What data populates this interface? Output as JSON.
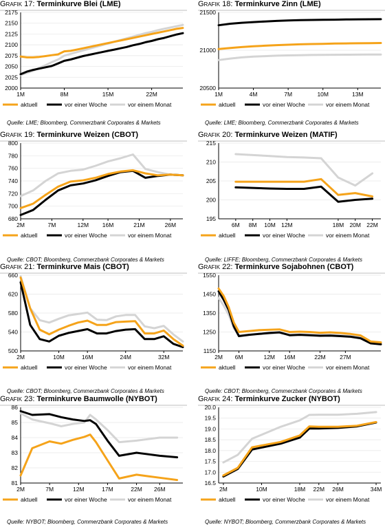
{
  "chart_data": [
    {
      "type": "line",
      "label_prefix": "Grafik",
      "number": "17:",
      "title": "Terminkurve Blei (LME)",
      "source": "Quelle: LME; Bloomberg, Commerzbank Corporates & Markets",
      "ylim": [
        2000,
        2175
      ],
      "yticks": [
        "2000",
        "2025",
        "2050",
        "2075",
        "2100",
        "2125",
        "2150",
        "2175"
      ],
      "x": [
        1,
        2,
        3,
        4,
        5,
        6,
        7,
        8,
        9,
        10,
        11,
        12,
        13,
        14,
        15,
        16,
        17,
        18,
        19,
        20,
        21,
        22,
        23,
        24,
        25,
        26,
        27
      ],
      "xlim": [
        1,
        27
      ],
      "xticks": [
        {
          "v": 1,
          "label": "1M"
        },
        {
          "v": 8,
          "label": "8M"
        },
        {
          "v": 15,
          "label": "15M"
        },
        {
          "v": 22,
          "label": "22M"
        }
      ],
      "series": [
        {
          "name": "aktuell",
          "values": [
            2073,
            2071,
            2071,
            2072,
            2074,
            2076,
            2078,
            2085,
            2086,
            2089,
            2092,
            2095,
            2098,
            2101,
            2104,
            2107,
            2110,
            2113,
            2116,
            2119,
            2122,
            2125,
            2128,
            2131,
            2134,
            2137,
            2139
          ]
        },
        {
          "name": "vor einer Woche",
          "values": [
            2032,
            2038,
            2042,
            2045,
            2048,
            2051,
            2057,
            2063,
            2066,
            2070,
            2074,
            2077,
            2080,
            2083,
            2086,
            2089,
            2092,
            2095,
            2099,
            2102,
            2106,
            2109,
            2113,
            2116,
            2120,
            2124,
            2127
          ]
        },
        {
          "name": "vor einem Monat",
          "values": [
            2030,
            2035,
            2040,
            2047,
            2053,
            2060,
            2066,
            2075,
            2079,
            2083,
            2087,
            2091,
            2095,
            2099,
            2103,
            2107,
            2111,
            2115,
            2119,
            2123,
            2127,
            2130,
            2134,
            2137,
            2140,
            2143,
            2146
          ]
        }
      ]
    },
    {
      "type": "line",
      "label_prefix": "Grafik",
      "number": "18:",
      "title": "Terminkurve Zinn (LME)",
      "source": "Quelle: LME; Bloomberg, Commerzbank Corporates & Markets",
      "ylim": [
        20500,
        21500
      ],
      "yticks": [
        "20500",
        "21000",
        "21500"
      ],
      "x": [
        1,
        2,
        3,
        4,
        5,
        6,
        7,
        8,
        9,
        10,
        11,
        12,
        13,
        14,
        15
      ],
      "xlim": [
        1,
        15
      ],
      "xticks": [
        {
          "v": 1,
          "label": "1M"
        },
        {
          "v": 4,
          "label": "4M"
        },
        {
          "v": 7,
          "label": "7M"
        },
        {
          "v": 10,
          "label": "10M"
        },
        {
          "v": 13,
          "label": "13M"
        }
      ],
      "series": [
        {
          "name": "aktuell",
          "values": [
            21015,
            21030,
            21042,
            21052,
            21060,
            21067,
            21073,
            21078,
            21082,
            21085,
            21088,
            21090,
            21092,
            21094,
            21095
          ]
        },
        {
          "name": "vor einer Woche",
          "values": [
            21330,
            21350,
            21363,
            21372,
            21380,
            21387,
            21393,
            21397,
            21400,
            21402,
            21404,
            21406,
            21408,
            21409,
            21410
          ]
        },
        {
          "name": "vor einem Monat",
          "values": [
            20870,
            20890,
            20905,
            20915,
            20922,
            20928,
            20932,
            20935,
            20937,
            20939,
            20940,
            20941,
            20942,
            20943,
            20943
          ]
        }
      ]
    },
    {
      "type": "line",
      "label_prefix": "Grafik",
      "number": "19:",
      "title": "Terminkurve Weizen (CBOT)",
      "source": "Quelle: CBOT; Bloomberg, Commerzbank Corporates & Markets",
      "ylim": [
        680,
        800
      ],
      "yticks": [
        "680",
        "700",
        "720",
        "740",
        "760",
        "780",
        "800"
      ],
      "x": [
        2,
        4,
        6,
        8,
        10,
        12,
        14,
        16,
        18,
        20,
        22,
        24,
        26,
        28
      ],
      "xlim": [
        2,
        28
      ],
      "xticks": [
        {
          "v": 2,
          "label": "2M"
        },
        {
          "v": 7,
          "label": "7M"
        },
        {
          "v": 12,
          "label": "12M"
        },
        {
          "v": 16,
          "label": "16M"
        },
        {
          "v": 21,
          "label": "21M"
        },
        {
          "v": 26,
          "label": "26M"
        }
      ],
      "series": [
        {
          "name": "aktuell",
          "values": [
            697,
            704,
            718,
            731,
            739,
            741,
            745,
            751,
            755,
            757,
            752,
            749,
            750,
            749
          ]
        },
        {
          "name": "vor einer Woche",
          "values": [
            686,
            694,
            710,
            725,
            733,
            736,
            741,
            748,
            754,
            756,
            745,
            748,
            750,
            749
          ]
        },
        {
          "name": "vor einem Monat",
          "values": [
            716,
            725,
            740,
            752,
            756,
            758,
            764,
            771,
            776,
            782,
            759,
            754,
            750,
            749
          ]
        }
      ]
    },
    {
      "type": "line",
      "label_prefix": "Grafik",
      "number": "20:",
      "title": "Terminkurve Weizen (MATIF)",
      "source": "Quelle: LIFFE; Bloomberg, Commerzbank Corporates & Markets",
      "ylim": [
        195,
        215
      ],
      "yticks": [
        "195",
        "200",
        "205",
        "210",
        "215"
      ],
      "x": [
        6,
        10,
        14,
        18,
        20,
        22
      ],
      "xlim": [
        4,
        23
      ],
      "xticks": [
        {
          "v": 6,
          "label": "6M"
        },
        {
          "v": 8,
          "label": "8M"
        },
        {
          "v": 10,
          "label": "10M"
        },
        {
          "v": 12,
          "label": "12M"
        },
        {
          "v": 18,
          "label": "18M"
        },
        {
          "v": 20,
          "label": "20M"
        },
        {
          "v": 22,
          "label": "22M"
        }
      ],
      "series": [
        {
          "name": "aktuell",
          "x": [
            6,
            10,
            12,
            14,
            16,
            18,
            20,
            22
          ],
          "values": [
            204.8,
            204.8,
            204.8,
            204.8,
            205.5,
            201.3,
            201.8,
            200.9
          ]
        },
        {
          "name": "vor einer Woche",
          "x": [
            6,
            10,
            12,
            14,
            16,
            18,
            20,
            22
          ],
          "values": [
            203.3,
            203.0,
            202.9,
            202.9,
            203.5,
            199.5,
            200.0,
            200.3
          ]
        },
        {
          "name": "vor einem Monat",
          "x": [
            6,
            10,
            12,
            14,
            16,
            18,
            20,
            22
          ],
          "values": [
            212.1,
            211.6,
            211.3,
            211.2,
            211.0,
            205.9,
            203.8,
            207.0
          ]
        }
      ]
    },
    {
      "type": "line",
      "label_prefix": "Grafik",
      "number": "21:",
      "title": "Terminkurve Mais (CBOT)",
      "source": "Quelle: CBOT; Bloomberg, Commerzbank Corporates & Markets",
      "ylim": [
        500,
        660
      ],
      "yticks": [
        "500",
        "540",
        "580",
        "620",
        "660"
      ],
      "x": [
        2,
        4,
        6,
        8,
        10,
        12,
        14,
        16,
        18,
        20,
        22,
        24,
        26,
        28,
        30,
        32,
        34,
        36
      ],
      "xlim": [
        2,
        36
      ],
      "xticks": [
        {
          "v": 2,
          "label": "2M"
        },
        {
          "v": 10,
          "label": "10M"
        },
        {
          "v": 16,
          "label": "16M"
        },
        {
          "v": 24,
          "label": "24M"
        },
        {
          "v": 32,
          "label": "32M"
        }
      ],
      "series": [
        {
          "name": "aktuell",
          "values": [
            655,
            590,
            545,
            535,
            545,
            553,
            560,
            564,
            555,
            555,
            561,
            562,
            563,
            537,
            537,
            543,
            525,
            511
          ]
        },
        {
          "name": "vor einer Woche",
          "values": [
            645,
            555,
            525,
            520,
            532,
            538,
            542,
            546,
            537,
            537,
            542,
            545,
            546,
            525,
            525,
            531,
            515,
            508
          ]
        },
        {
          "name": "vor einem Monat",
          "values": [
            658,
            590,
            565,
            560,
            568,
            575,
            578,
            581,
            566,
            565,
            573,
            576,
            576,
            552,
            548,
            553,
            535,
            520
          ]
        }
      ]
    },
    {
      "type": "line",
      "label_prefix": "Grafik",
      "number": "22:",
      "title": "Terminkurve Sojabohnen (CBOT)",
      "source": "Quelle: CBOT; Bloomberg, Commerzbank Corporates & Markets",
      "ylim": [
        1150,
        1550
      ],
      "yticks": [
        "1150",
        "1250",
        "1350",
        "1450",
        "1550"
      ],
      "x": [
        2,
        3,
        4,
        5,
        6,
        8,
        10,
        12,
        14,
        16,
        18,
        20,
        22,
        24,
        26,
        28,
        30,
        32,
        34
      ],
      "xlim": [
        2,
        34
      ],
      "xticks": [
        {
          "v": 2,
          "label": "2M"
        },
        {
          "v": 6,
          "label": "6M"
        },
        {
          "v": 12,
          "label": "12M"
        },
        {
          "v": 16,
          "label": "16M"
        },
        {
          "v": 22,
          "label": "22M"
        },
        {
          "v": 27,
          "label": "27M"
        }
      ],
      "series": [
        {
          "name": "aktuell",
          "values": [
            1480,
            1440,
            1380,
            1300,
            1250,
            1255,
            1260,
            1262,
            1264,
            1250,
            1252,
            1250,
            1246,
            1248,
            1245,
            1240,
            1232,
            1200,
            1195
          ]
        },
        {
          "name": "vor einer Woche",
          "values": [
            1465,
            1420,
            1365,
            1280,
            1228,
            1235,
            1240,
            1245,
            1248,
            1233,
            1235,
            1233,
            1230,
            1231,
            1228,
            1225,
            1217,
            1190,
            1185
          ]
        },
        {
          "name": "vor einem Monat",
          "values": [
            1430,
            1390,
            1340,
            1270,
            1232,
            1236,
            1240,
            1242,
            1245,
            1236,
            1238,
            1237,
            1235,
            1236,
            1233,
            1228,
            1222,
            1198,
            1193
          ]
        }
      ]
    },
    {
      "type": "line",
      "label_prefix": "Grafik",
      "number": "23:",
      "title": "Terminkurve Baumwolle (NYBOT)",
      "source": "Quelle: NYBOT; Bloomberg, Commerzbank Corporates & Markets",
      "ylim": [
        81,
        86
      ],
      "yticks": [
        "81",
        "82",
        "83",
        "84",
        "85",
        "86"
      ],
      "x": [
        2,
        4,
        7,
        9,
        11,
        13,
        14,
        15,
        17,
        19,
        22,
        24,
        26,
        29
      ],
      "xlim": [
        2,
        30
      ],
      "xticks": [
        {
          "v": 2,
          "label": "2M"
        },
        {
          "v": 7,
          "label": "7M"
        },
        {
          "v": 12,
          "label": "12M"
        },
        {
          "v": 17,
          "label": "17M"
        },
        {
          "v": 22,
          "label": "22M"
        },
        {
          "v": 26,
          "label": "26M"
        }
      ],
      "series": [
        {
          "name": "aktuell",
          "values": [
            81.5,
            83.3,
            83.75,
            83.6,
            83.85,
            84.05,
            84.2,
            83.7,
            82.5,
            81.3,
            81.55,
            81.45,
            81.35,
            81.2
          ]
        },
        {
          "name": "vor einer Woche",
          "values": [
            85.75,
            85.5,
            85.55,
            85.35,
            85.2,
            85.1,
            85.15,
            84.9,
            83.8,
            82.8,
            83.0,
            82.9,
            82.8,
            82.7
          ]
        },
        {
          "name": "vor einem Monat",
          "values": [
            85.6,
            85.2,
            84.95,
            84.75,
            84.9,
            85.0,
            85.5,
            85.2,
            84.5,
            83.7,
            83.8,
            83.9,
            84.0,
            84.0
          ]
        }
      ]
    },
    {
      "type": "line",
      "label_prefix": "Grafik",
      "number": "24:",
      "title": "Terminkurve Zucker (NYBOT)",
      "source": "Quelle: NYBOT; Bloomberg, Commerzbank Corporates & Markets",
      "ylim": [
        16.5,
        20.0
      ],
      "yticks": [
        "16.5",
        "17.0",
        "17.5",
        "18.0",
        "18.5",
        "19.0",
        "19.5",
        "20.0"
      ],
      "x": [
        2,
        5,
        8,
        14,
        18,
        20,
        22,
        26,
        30,
        34
      ],
      "xlim": [
        1,
        35
      ],
      "xticks": [
        {
          "v": 2,
          "label": "2M"
        },
        {
          "v": 10,
          "label": "10M"
        },
        {
          "v": 18,
          "label": "18M"
        },
        {
          "v": 22,
          "label": "22M"
        },
        {
          "v": 26,
          "label": "26M"
        },
        {
          "v": 34,
          "label": "34M"
        }
      ],
      "series": [
        {
          "name": "aktuell",
          "values": [
            16.85,
            17.2,
            18.15,
            18.4,
            18.7,
            19.12,
            19.1,
            19.1,
            19.15,
            19.32
          ]
        },
        {
          "name": "vor einer Woche",
          "values": [
            16.8,
            17.15,
            18.05,
            18.32,
            18.6,
            19.02,
            19.02,
            19.05,
            19.12,
            19.3
          ]
        },
        {
          "name": "vor einem Monat",
          "values": [
            17.45,
            17.8,
            18.55,
            19.1,
            19.4,
            19.65,
            19.66,
            19.66,
            19.7,
            19.78
          ]
        }
      ]
    }
  ],
  "colors": {
    "aktuell": "#f5a31a",
    "vor einer Woche": "#000000",
    "vor einem Monat": "#d4d4d4",
    "divider": "#bdbdbd",
    "grid": "#e6e6e6"
  }
}
